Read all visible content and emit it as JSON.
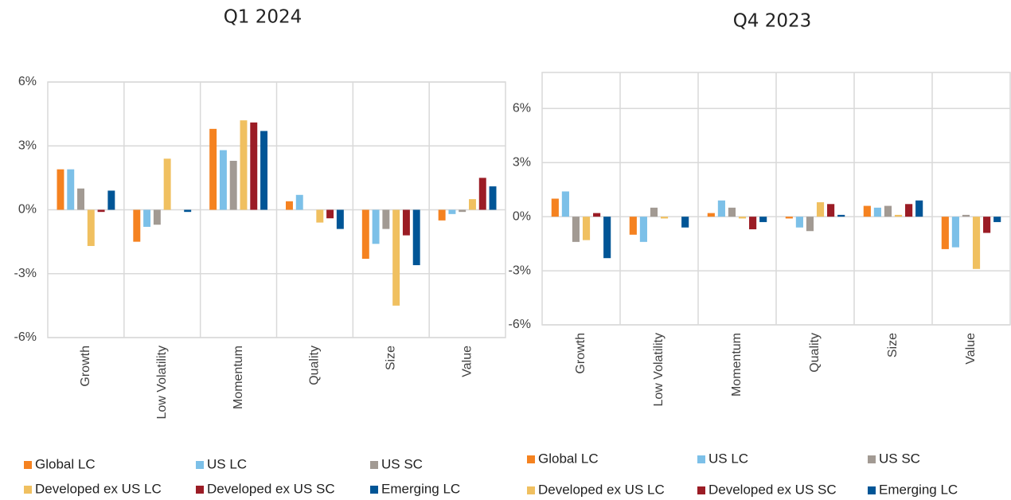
{
  "chart_data": [
    {
      "type": "bar",
      "title": "Q1 2024",
      "categories": [
        "Growth",
        "Low Volatility",
        "Momentum",
        "Quality",
        "Size",
        "Value"
      ],
      "series": [
        {
          "name": "Global LC",
          "color": "#f58220",
          "values": [
            1.9,
            -1.5,
            3.8,
            0.4,
            -2.3,
            -0.5
          ]
        },
        {
          "name": "US LC",
          "color": "#7cc0e8",
          "values": [
            1.9,
            -0.8,
            2.8,
            0.7,
            -1.6,
            -0.2
          ]
        },
        {
          "name": "US SC",
          "color": "#a29a93",
          "values": [
            1.0,
            -0.7,
            2.3,
            0.0,
            -0.9,
            -0.1
          ]
        },
        {
          "name": "Developed ex US LC",
          "color": "#f0c060",
          "values": [
            -1.7,
            2.4,
            4.2,
            -0.6,
            -4.5,
            0.5
          ]
        },
        {
          "name": "Developed ex US SC",
          "color": "#9b1c25",
          "values": [
            -0.1,
            0.0,
            4.1,
            -0.4,
            -1.2,
            1.5
          ]
        },
        {
          "name": "Emerging LC",
          "color": "#005596",
          "values": [
            0.9,
            -0.1,
            3.7,
            -0.9,
            -2.6,
            1.1
          ]
        }
      ],
      "ylim": [
        -6,
        6
      ],
      "yticks": [
        {
          "value": -6,
          "label": "-6%"
        },
        {
          "value": -3,
          "label": "-3%"
        },
        {
          "value": 0,
          "label": "0%"
        },
        {
          "value": 3,
          "label": "3%"
        },
        {
          "value": 6,
          "label": "6%"
        }
      ],
      "grid": true
    },
    {
      "type": "bar",
      "title": "Q4 2023",
      "categories": [
        "Growth",
        "Low Volatility",
        "Momentum",
        "Quality",
        "Size",
        "Value"
      ],
      "series": [
        {
          "name": "Global LC",
          "color": "#f58220",
          "values": [
            1.0,
            -1.0,
            0.2,
            -0.1,
            0.6,
            -1.8
          ]
        },
        {
          "name": "US LC",
          "color": "#7cc0e8",
          "values": [
            1.4,
            -1.4,
            0.9,
            -0.6,
            0.5,
            -1.7
          ]
        },
        {
          "name": "US SC",
          "color": "#a29a93",
          "values": [
            -1.4,
            0.5,
            0.5,
            -0.8,
            0.6,
            0.1
          ]
        },
        {
          "name": "Developed ex US LC",
          "color": "#f0c060",
          "values": [
            -1.3,
            -0.1,
            -0.1,
            0.8,
            0.1,
            -2.9
          ]
        },
        {
          "name": "Developed ex US SC",
          "color": "#9b1c25",
          "values": [
            0.2,
            0.0,
            -0.7,
            0.7,
            0.7,
            -0.9
          ]
        },
        {
          "name": "Emerging LC",
          "color": "#005596",
          "values": [
            -2.3,
            -0.6,
            -0.3,
            0.1,
            0.9,
            -0.3
          ]
        }
      ],
      "ylim": [
        -6,
        8
      ],
      "yticks": [
        {
          "value": -6,
          "label": "-6%"
        },
        {
          "value": -3,
          "label": "-3%"
        },
        {
          "value": 0,
          "label": "0%"
        },
        {
          "value": 3,
          "label": "3%"
        },
        {
          "value": 6,
          "label": "6%"
        }
      ],
      "grid": true
    }
  ]
}
